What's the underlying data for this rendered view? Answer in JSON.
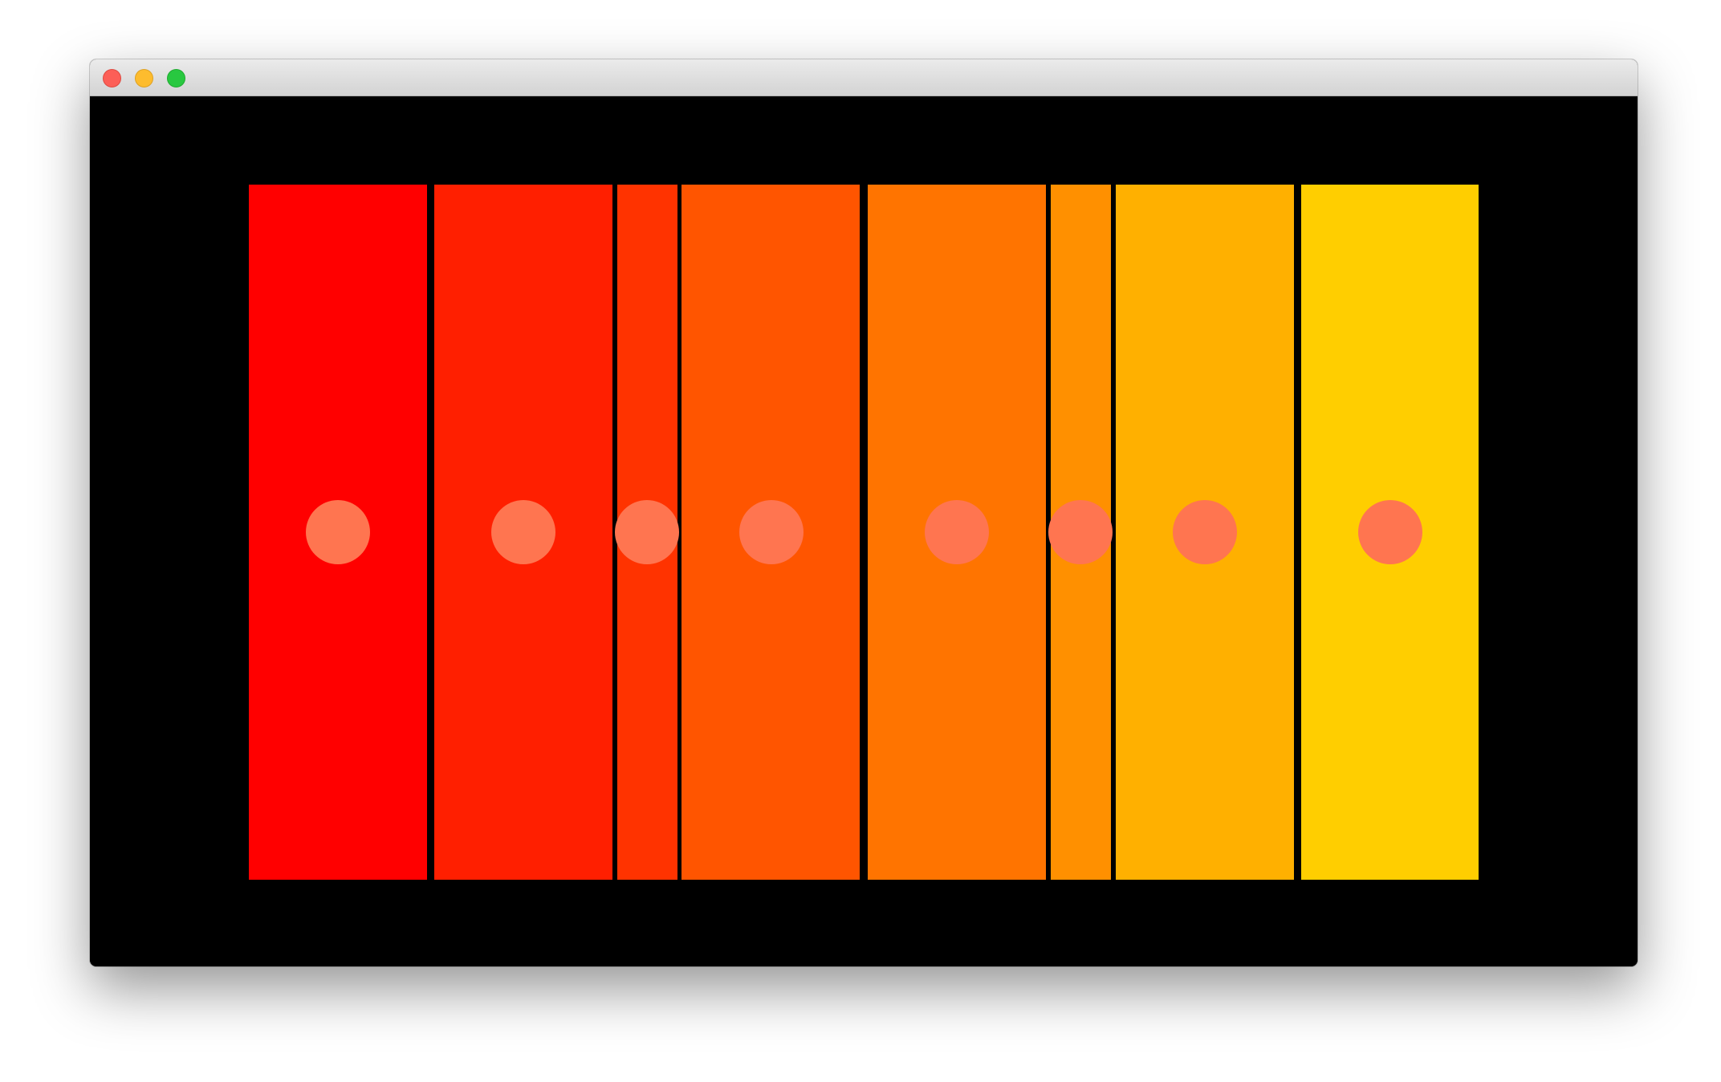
{
  "window": {
    "controls": [
      {
        "name": "close-button",
        "icon": "close-dot-icon"
      },
      {
        "name": "minimize-button",
        "icon": "minimize-dot-icon"
      },
      {
        "name": "zoom-button",
        "icon": "zoom-dot-icon"
      }
    ]
  },
  "canvas": {
    "background": "#000000",
    "dot_color": "#ff7550",
    "bars": [
      {
        "color": "#ff0000"
      },
      {
        "color": "#ff1f00"
      },
      {
        "color": "#ff3300"
      },
      {
        "color": "#ff5500"
      },
      {
        "color": "#ff7400"
      },
      {
        "color": "#ff9000"
      },
      {
        "color": "#ffb000"
      },
      {
        "color": "#ffce00"
      }
    ]
  }
}
